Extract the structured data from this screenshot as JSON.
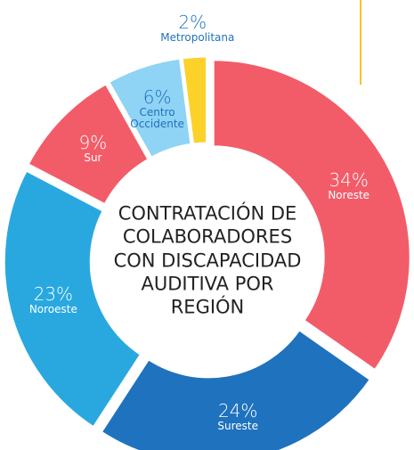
{
  "chart_data": {
    "type": "donut",
    "title": [
      "CONTRATACIÓN DE",
      "COLABORADORES",
      "CON DISCAPACIDAD",
      "AUDITIVA POR",
      "REGIÓN"
    ],
    "categories": [
      "Noreste",
      "Sureste",
      "Noroeste",
      "Sur",
      "Centro Occidente",
      "Metropolitana"
    ],
    "values": [
      34,
      24,
      23,
      9,
      6,
      2
    ],
    "value_labels": [
      "34%",
      "24%",
      "23%",
      "9%",
      "6%",
      "2%"
    ],
    "colors": [
      "#f25c69",
      "#1f72bd",
      "#29a8e0",
      "#f25c69",
      "#8fd3f5",
      "#fcd12a"
    ]
  }
}
